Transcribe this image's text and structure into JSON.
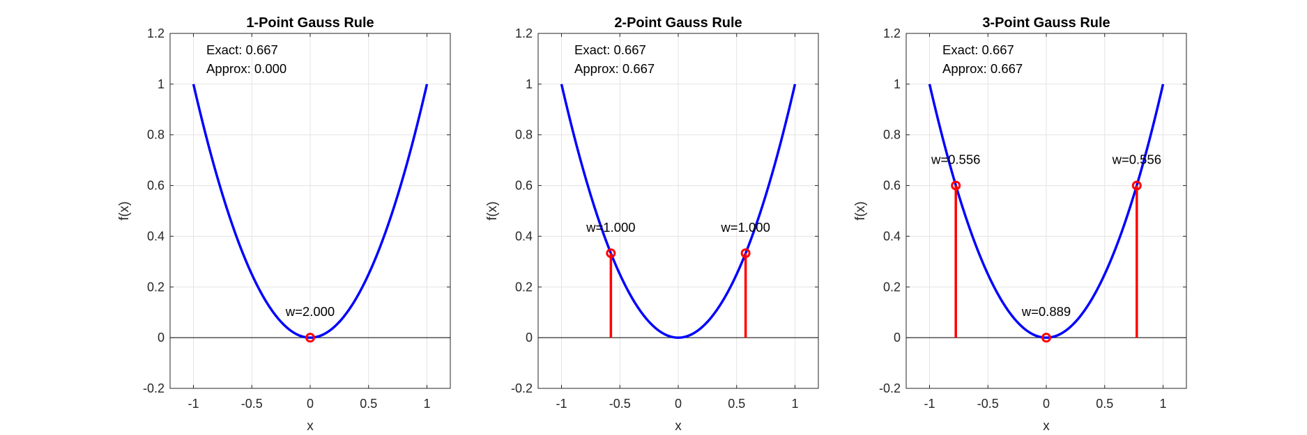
{
  "chart_data": [
    {
      "type": "line",
      "title": "1-Point Gauss Rule",
      "xlabel": "x",
      "ylabel": "f(x)",
      "xlim": [
        -1.2,
        1.2
      ],
      "ylim": [
        -0.2,
        1.2
      ],
      "xticks": [
        -1,
        -0.5,
        0,
        0.5,
        1
      ],
      "xtick_labels": [
        "-1",
        "-0.5",
        "0",
        "0.5",
        "1"
      ],
      "yticks": [
        -0.2,
        0,
        0.2,
        0.4,
        0.6,
        0.8,
        1,
        1.2
      ],
      "ytick_labels": [
        "-0.2",
        "0",
        "0.2",
        "0.4",
        "0.6",
        "0.8",
        "1",
        "1.2"
      ],
      "grid": true,
      "curve": {
        "function": "x^2",
        "domain": [
          -1,
          1
        ],
        "color": "#0000FF"
      },
      "points": [
        {
          "x": 0,
          "y": 0,
          "weight_label": "w=2.000"
        }
      ],
      "point_color": "#FF0000",
      "annotation_lines": [
        "Exact: 0.667",
        "Approx: 0.000"
      ]
    },
    {
      "type": "line",
      "title": "2-Point Gauss Rule",
      "xlabel": "x",
      "ylabel": "f(x)",
      "xlim": [
        -1.2,
        1.2
      ],
      "ylim": [
        -0.2,
        1.2
      ],
      "xticks": [
        -1,
        -0.5,
        0,
        0.5,
        1
      ],
      "xtick_labels": [
        "-1",
        "-0.5",
        "0",
        "0.5",
        "1"
      ],
      "yticks": [
        -0.2,
        0,
        0.2,
        0.4,
        0.6,
        0.8,
        1,
        1.2
      ],
      "ytick_labels": [
        "-0.2",
        "0",
        "0.2",
        "0.4",
        "0.6",
        "0.8",
        "1",
        "1.2"
      ],
      "grid": true,
      "curve": {
        "function": "x^2",
        "domain": [
          -1,
          1
        ],
        "color": "#0000FF"
      },
      "points": [
        {
          "x": -0.577,
          "y": 0.333,
          "weight_label": "w=1.000"
        },
        {
          "x": 0.577,
          "y": 0.333,
          "weight_label": "w=1.000"
        }
      ],
      "point_color": "#FF0000",
      "annotation_lines": [
        "Exact: 0.667",
        "Approx: 0.667"
      ]
    },
    {
      "type": "line",
      "title": "3-Point Gauss Rule",
      "xlabel": "x",
      "ylabel": "f(x)",
      "xlim": [
        -1.2,
        1.2
      ],
      "ylim": [
        -0.2,
        1.2
      ],
      "xticks": [
        -1,
        -0.5,
        0,
        0.5,
        1
      ],
      "xtick_labels": [
        "-1",
        "-0.5",
        "0",
        "0.5",
        "1"
      ],
      "yticks": [
        -0.2,
        0,
        0.2,
        0.4,
        0.6,
        0.8,
        1,
        1.2
      ],
      "ytick_labels": [
        "-0.2",
        "0",
        "0.2",
        "0.4",
        "0.6",
        "0.8",
        "1",
        "1.2"
      ],
      "grid": true,
      "curve": {
        "function": "x^2",
        "domain": [
          -1,
          1
        ],
        "color": "#0000FF"
      },
      "points": [
        {
          "x": -0.775,
          "y": 0.6,
          "weight_label": "w=0.556"
        },
        {
          "x": 0,
          "y": 0,
          "weight_label": "w=0.889"
        },
        {
          "x": 0.775,
          "y": 0.6,
          "weight_label": "w=0.556"
        }
      ],
      "point_color": "#FF0000",
      "annotation_lines": [
        "Exact: 0.667",
        "Approx: 0.667"
      ]
    }
  ]
}
